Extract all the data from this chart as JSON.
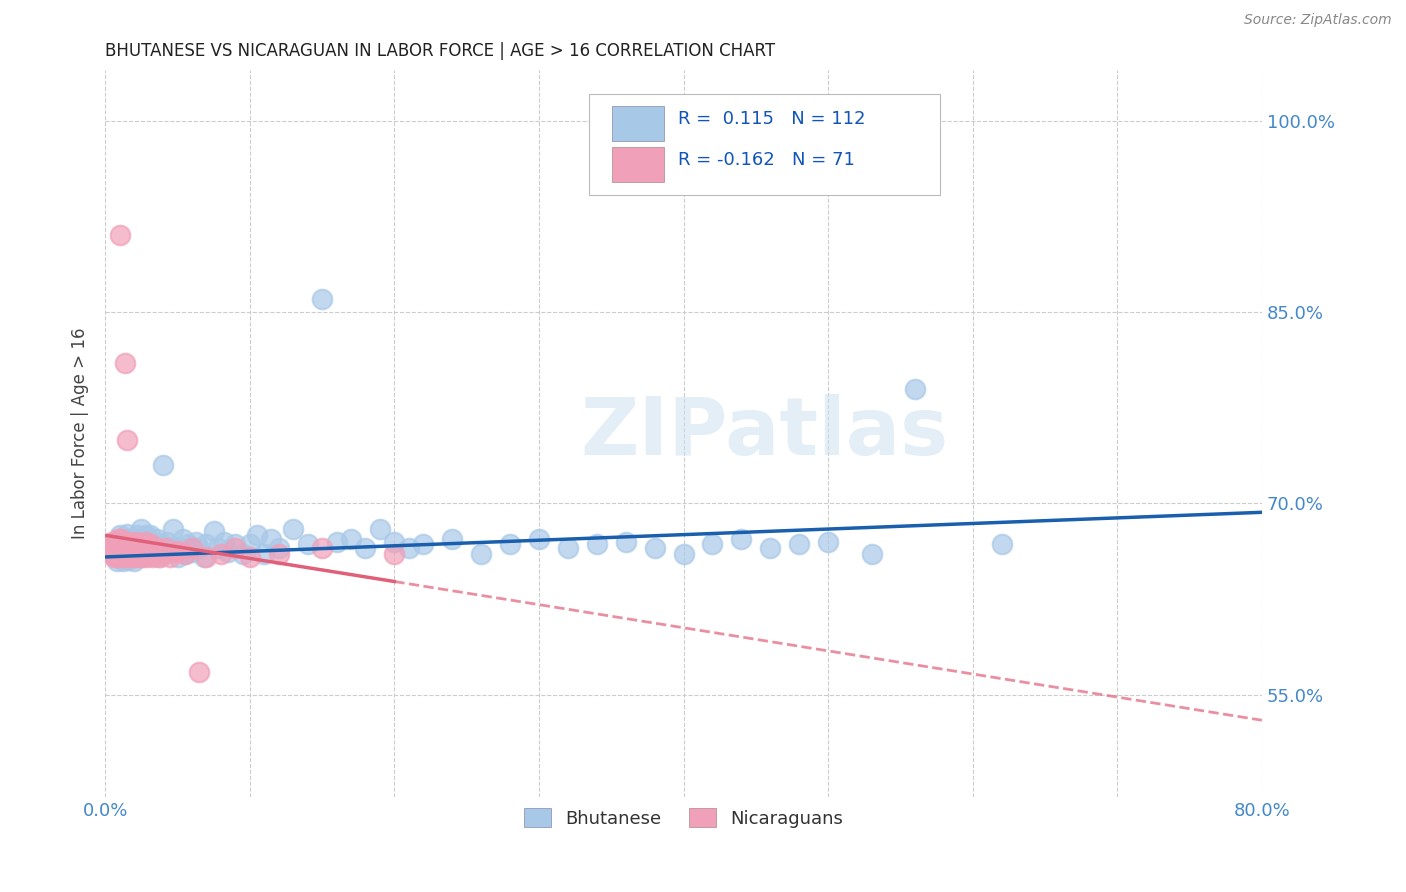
{
  "title": "BHUTANESE VS NICARAGUAN IN LABOR FORCE | AGE > 16 CORRELATION CHART",
  "source": "Source: ZipAtlas.com",
  "ylabel": "In Labor Force | Age > 16",
  "xlim": [
    0.0,
    0.8
  ],
  "ylim": [
    0.47,
    1.04
  ],
  "yticks": [
    0.55,
    0.7,
    0.85,
    1.0
  ],
  "yticklabels": [
    "55.0%",
    "70.0%",
    "85.0%",
    "100.0%"
  ],
  "xtick_positions": [
    0.0,
    0.1,
    0.2,
    0.3,
    0.4,
    0.5,
    0.6,
    0.7,
    0.8
  ],
  "xtick_labels": [
    "0.0%",
    "",
    "",
    "",
    "",
    "",
    "",
    "",
    "80.0%"
  ],
  "blue_R": 0.115,
  "blue_N": 112,
  "pink_R": -0.162,
  "pink_N": 71,
  "blue_color": "#a8c8e8",
  "pink_color": "#f0a0b8",
  "blue_line_color": "#1a5fad",
  "pink_line_color": "#e0607a",
  "tick_color": "#4488cc",
  "watermark": "ZIPatlas",
  "legend_blue_label": "Bhutanese",
  "legend_pink_label": "Nicaraguans",
  "background_color": "#ffffff",
  "grid_color": "#cccccc",
  "blue_scatter_x": [
    0.005,
    0.007,
    0.008,
    0.008,
    0.009,
    0.009,
    0.01,
    0.01,
    0.01,
    0.01,
    0.011,
    0.011,
    0.012,
    0.012,
    0.013,
    0.013,
    0.014,
    0.014,
    0.015,
    0.015,
    0.015,
    0.016,
    0.016,
    0.016,
    0.017,
    0.017,
    0.018,
    0.018,
    0.019,
    0.019,
    0.02,
    0.02,
    0.02,
    0.021,
    0.022,
    0.022,
    0.023,
    0.023,
    0.024,
    0.024,
    0.025,
    0.025,
    0.026,
    0.026,
    0.027,
    0.028,
    0.028,
    0.029,
    0.03,
    0.03,
    0.031,
    0.032,
    0.033,
    0.034,
    0.035,
    0.036,
    0.037,
    0.038,
    0.04,
    0.04,
    0.042,
    0.043,
    0.045,
    0.047,
    0.05,
    0.052,
    0.054,
    0.055,
    0.057,
    0.06,
    0.063,
    0.065,
    0.068,
    0.07,
    0.075,
    0.078,
    0.082,
    0.085,
    0.09,
    0.095,
    0.1,
    0.105,
    0.11,
    0.115,
    0.12,
    0.13,
    0.14,
    0.15,
    0.16,
    0.17,
    0.18,
    0.19,
    0.2,
    0.21,
    0.22,
    0.24,
    0.26,
    0.28,
    0.3,
    0.32,
    0.34,
    0.36,
    0.38,
    0.4,
    0.42,
    0.44,
    0.46,
    0.48,
    0.5,
    0.53,
    0.56,
    0.62
  ],
  "blue_scatter_y": [
    0.665,
    0.67,
    0.66,
    0.655,
    0.668,
    0.658,
    0.666,
    0.662,
    0.67,
    0.675,
    0.66,
    0.672,
    0.665,
    0.655,
    0.668,
    0.658,
    0.662,
    0.67,
    0.666,
    0.658,
    0.676,
    0.662,
    0.668,
    0.656,
    0.665,
    0.672,
    0.66,
    0.668,
    0.663,
    0.67,
    0.655,
    0.665,
    0.672,
    0.66,
    0.668,
    0.675,
    0.663,
    0.671,
    0.665,
    0.658,
    0.67,
    0.68,
    0.663,
    0.672,
    0.66,
    0.668,
    0.675,
    0.66,
    0.663,
    0.67,
    0.675,
    0.662,
    0.668,
    0.66,
    0.665,
    0.672,
    0.658,
    0.668,
    0.73,
    0.665,
    0.662,
    0.67,
    0.665,
    0.68,
    0.658,
    0.665,
    0.672,
    0.66,
    0.668,
    0.662,
    0.67,
    0.665,
    0.658,
    0.668,
    0.678,
    0.665,
    0.67,
    0.662,
    0.668,
    0.66,
    0.668,
    0.675,
    0.66,
    0.672,
    0.665,
    0.68,
    0.668,
    0.86,
    0.67,
    0.672,
    0.665,
    0.68,
    0.67,
    0.665,
    0.668,
    0.672,
    0.66,
    0.668,
    0.672,
    0.665,
    0.668,
    0.67,
    0.665,
    0.66,
    0.668,
    0.672,
    0.665,
    0.668,
    0.67,
    0.66,
    0.79,
    0.668
  ],
  "pink_scatter_x": [
    0.003,
    0.004,
    0.005,
    0.005,
    0.006,
    0.006,
    0.007,
    0.007,
    0.008,
    0.008,
    0.009,
    0.009,
    0.01,
    0.01,
    0.01,
    0.011,
    0.011,
    0.012,
    0.012,
    0.013,
    0.013,
    0.014,
    0.014,
    0.015,
    0.015,
    0.016,
    0.016,
    0.017,
    0.017,
    0.018,
    0.018,
    0.019,
    0.019,
    0.02,
    0.02,
    0.021,
    0.021,
    0.022,
    0.022,
    0.023,
    0.023,
    0.024,
    0.024,
    0.025,
    0.026,
    0.027,
    0.028,
    0.028,
    0.029,
    0.03,
    0.031,
    0.032,
    0.033,
    0.034,
    0.036,
    0.038,
    0.04,
    0.042,
    0.045,
    0.048,
    0.05,
    0.055,
    0.06,
    0.065,
    0.07,
    0.08,
    0.09,
    0.1,
    0.12,
    0.15,
    0.2
  ],
  "pink_scatter_y": [
    0.668,
    0.66,
    0.67,
    0.66,
    0.665,
    0.658,
    0.662,
    0.67,
    0.665,
    0.658,
    0.672,
    0.66,
    0.668,
    0.91,
    0.658,
    0.665,
    0.672,
    0.66,
    0.668,
    0.658,
    0.665,
    0.81,
    0.658,
    0.665,
    0.75,
    0.658,
    0.668,
    0.662,
    0.67,
    0.658,
    0.665,
    0.66,
    0.668,
    0.658,
    0.665,
    0.66,
    0.668,
    0.662,
    0.67,
    0.658,
    0.665,
    0.66,
    0.668,
    0.662,
    0.658,
    0.665,
    0.66,
    0.67,
    0.658,
    0.665,
    0.66,
    0.668,
    0.658,
    0.662,
    0.665,
    0.658,
    0.66,
    0.665,
    0.658,
    0.662,
    0.663,
    0.66,
    0.665,
    0.568,
    0.658,
    0.66,
    0.665,
    0.658,
    0.66,
    0.665,
    0.66
  ]
}
